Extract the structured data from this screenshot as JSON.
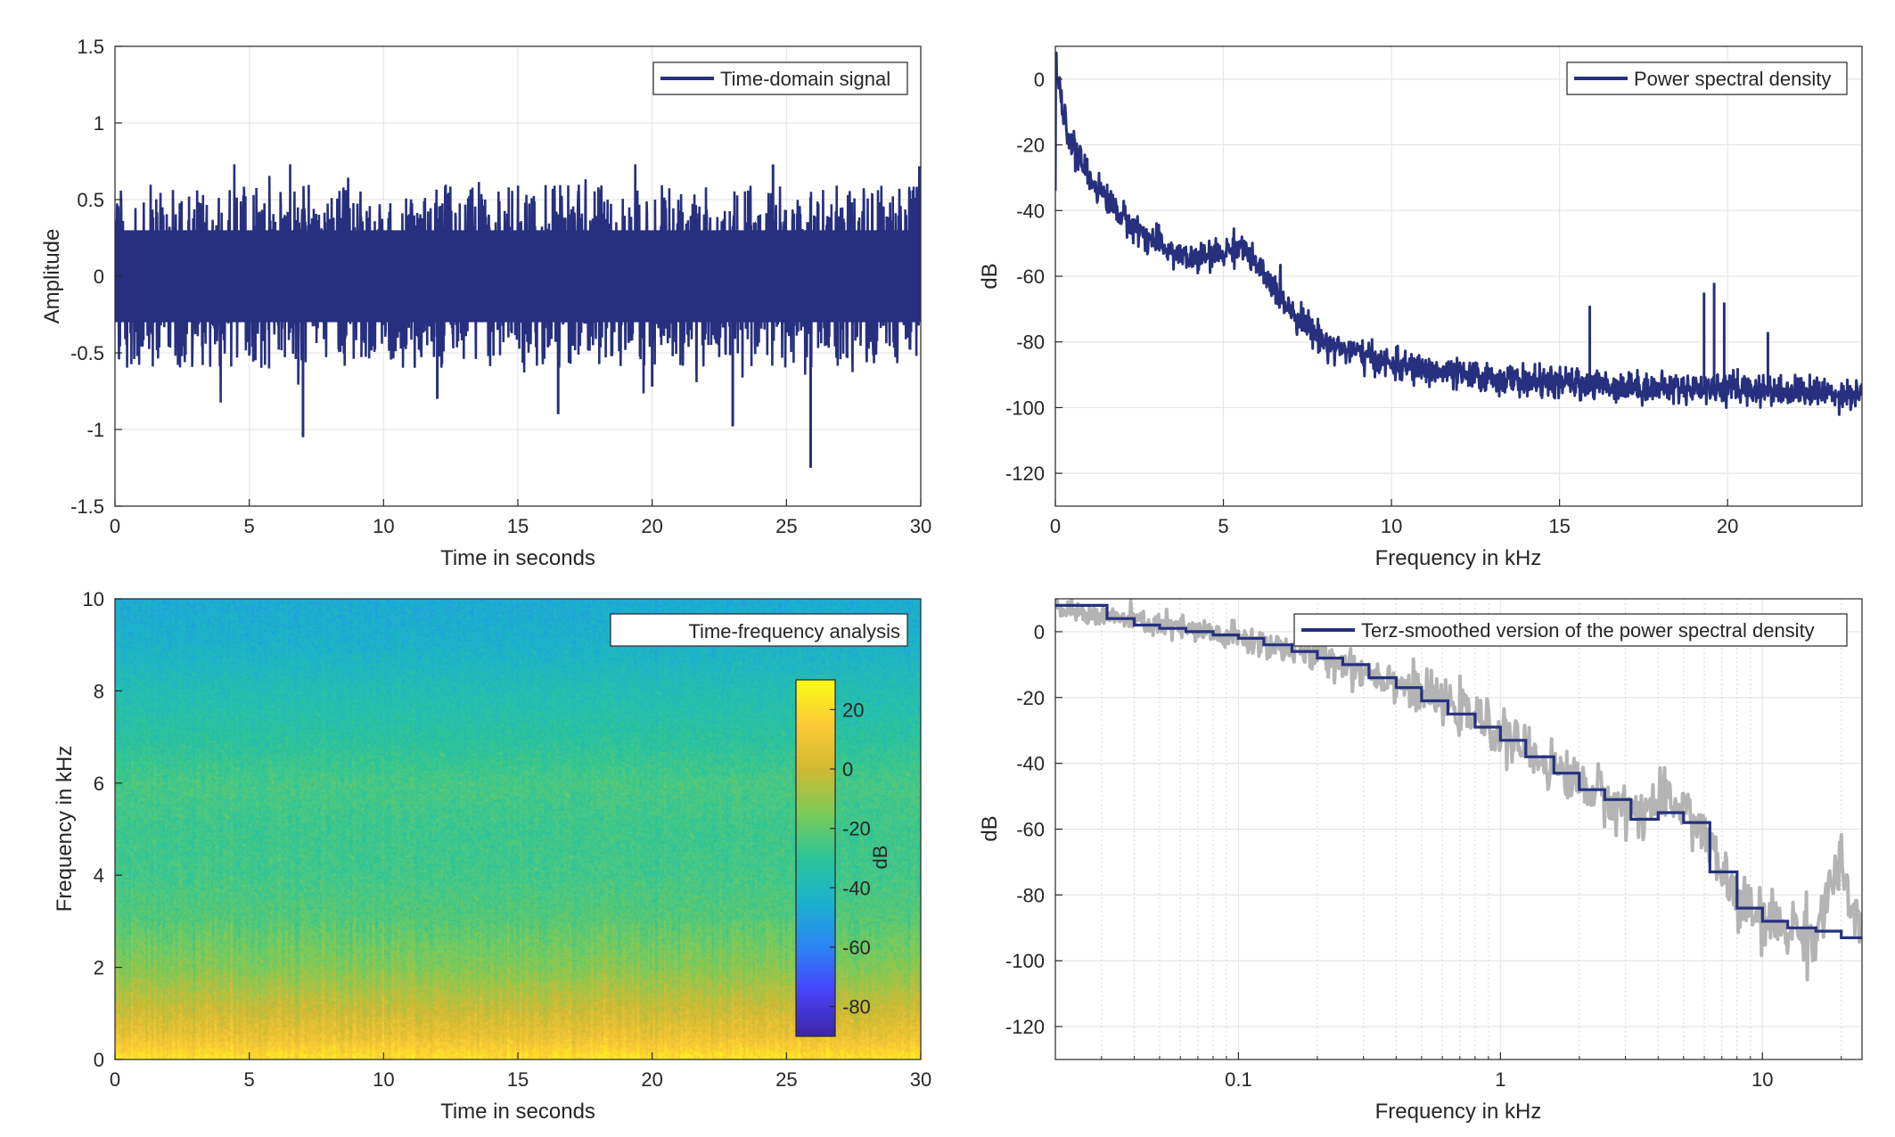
{
  "colors": {
    "series": "#26307e",
    "raw": "#b4b4b4",
    "grid": "#e6e6e6",
    "axis": "#262626",
    "colormap": [
      "#3e26a8",
      "#4743f8",
      "#2c85f6",
      "#1cb1ce",
      "#2cc59a",
      "#7bcb59",
      "#d1ba33",
      "#fcc937",
      "#f9fb15"
    ]
  },
  "chart_data": [
    {
      "type": "line",
      "legend": "Time-domain signal",
      "legend_position": "top-right",
      "xlabel": "Time in seconds",
      "ylabel": "Amplitude",
      "xlim": [
        0,
        30
      ],
      "ylim": [
        -1.5,
        1.5
      ],
      "xticks": [
        "0",
        "5",
        "10",
        "15",
        "20",
        "25",
        "30"
      ],
      "yticks": [
        "-1.5",
        "-1",
        "-0.5",
        "0",
        "0.5",
        "1",
        "1.5"
      ],
      "grid": true,
      "signal": {
        "duration_s": 30,
        "core_band": [
          -0.3,
          0.3
        ],
        "typical_peaks": [
          -0.6,
          0.6
        ],
        "extreme_peaks": [
          -1.25,
          0.73
        ]
      }
    },
    {
      "type": "line",
      "legend": "Power spectral density",
      "legend_position": "top-right",
      "xlabel": "Frequency in kHz",
      "ylabel": "dB",
      "xlim": [
        0,
        24
      ],
      "ylim": [
        -130,
        10
      ],
      "xticks": [
        "0",
        "5",
        "10",
        "15",
        "20"
      ],
      "yticks": [
        "-120",
        "-100",
        "-80",
        "-60",
        "-40",
        "-20",
        "0"
      ],
      "grid": true,
      "x": [
        0,
        0.25,
        0.5,
        1,
        2,
        3,
        4,
        5,
        5.5,
        6,
        7,
        8,
        10,
        12,
        14,
        16,
        18,
        20,
        22,
        24
      ],
      "y": [
        5,
        -12,
        -20,
        -30,
        -42,
        -50,
        -55,
        -53,
        -50,
        -57,
        -70,
        -80,
        -87,
        -90,
        -92,
        -93,
        -94,
        -94,
        -95,
        -96
      ],
      "spikes": [
        [
          15.9,
          -69
        ],
        [
          19.3,
          -65
        ],
        [
          19.6,
          -62
        ],
        [
          19.9,
          -68
        ],
        [
          20.3,
          -88
        ],
        [
          21.2,
          -77
        ]
      ]
    },
    {
      "type": "heatmap",
      "legend": "Time-frequency analysis",
      "legend_position": "top-right",
      "xlabel": "Time in seconds",
      "ylabel": "Frequency in kHz",
      "xlim": [
        0,
        30
      ],
      "ylim": [
        0,
        10
      ],
      "xticks": [
        "0",
        "5",
        "10",
        "15",
        "20",
        "25",
        "30"
      ],
      "yticks": [
        "0",
        "2",
        "4",
        "6",
        "8",
        "10"
      ],
      "colorbar": {
        "label": "dB",
        "range": [
          -90,
          30
        ],
        "ticks": [
          "-80",
          "-60",
          "-40",
          "-20",
          "0",
          "20"
        ]
      },
      "freq_profile_khz": [
        0,
        0.5,
        1,
        2,
        3,
        4,
        5,
        6,
        7,
        8,
        9,
        10
      ],
      "level_db": [
        22,
        8,
        0,
        -14,
        -22,
        -26,
        -27,
        -25,
        -32,
        -37,
        -44,
        -47
      ]
    },
    {
      "type": "line",
      "legend": "Terz-smoothed version of the power spectral density",
      "legend_position": "top-right",
      "xlabel": "Frequency in kHz",
      "ylabel": "dB",
      "xscale": "log",
      "xlim": [
        0.02,
        24
      ],
      "ylim": [
        -130,
        10
      ],
      "xticks": [
        "0.1",
        "1",
        "10"
      ],
      "yticks": [
        "-120",
        "-100",
        "-80",
        "-60",
        "-40",
        "-20",
        "0"
      ],
      "grid": true,
      "series": [
        {
          "name": "Terz-smoothed version of the power spectral density",
          "x": [
            0.02,
            0.025,
            0.0315,
            0.04,
            0.05,
            0.063,
            0.08,
            0.1,
            0.125,
            0.16,
            0.2,
            0.25,
            0.315,
            0.4,
            0.5,
            0.63,
            0.8,
            1,
            1.25,
            1.6,
            2,
            2.5,
            3.15,
            4,
            5,
            6.3,
            8,
            10,
            12.5,
            16,
            20
          ],
          "y": [
            8,
            8,
            4,
            2,
            1,
            0,
            -1,
            -2,
            -4,
            -6,
            -8,
            -10,
            -14,
            -17,
            -21,
            -25,
            -29,
            -33,
            -38,
            -43,
            -48,
            -51,
            -57,
            -55,
            -58,
            -73,
            -84,
            -88,
            -90,
            -91,
            -93
          ]
        },
        {
          "name": "raw",
          "x": [
            0.02,
            0.05,
            0.1,
            0.2,
            0.4,
            0.8,
            1.5,
            3,
            5,
            6,
            8,
            10,
            16,
            19.5,
            24
          ],
          "y": [
            7,
            2,
            -2,
            -7,
            -15,
            -26,
            -40,
            -54,
            -52,
            -62,
            -82,
            -88,
            -92,
            -70,
            -96
          ]
        }
      ]
    }
  ]
}
